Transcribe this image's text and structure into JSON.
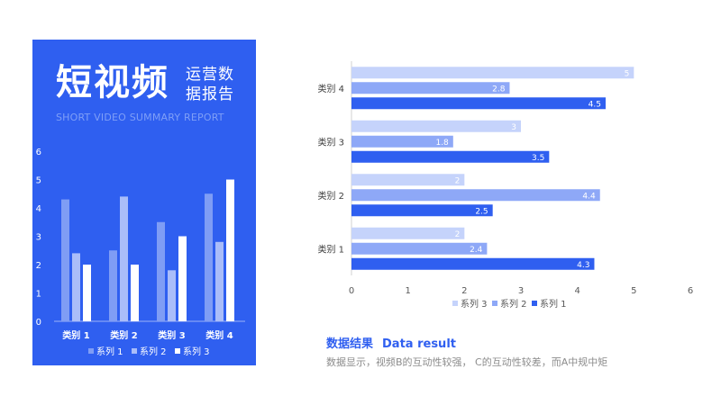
{
  "header": {
    "title_main": "短视频",
    "title_side": "运营数据报告",
    "title_en": "SHORT VIDEO SUMMARY REPORT"
  },
  "colors": {
    "panel_bg": "#2f5ff0",
    "series1": "#2f5ff0",
    "series2": "#8ea8f7",
    "series3": "#c5d3fb",
    "left_series1": "#7f9df5",
    "left_series2": "#aabdf9",
    "left_series3": "#ffffff"
  },
  "chart_data": [
    {
      "type": "bar",
      "orientation": "vertical",
      "categories": [
        "类别 1",
        "类别 2",
        "类别 3",
        "类别 4"
      ],
      "series": [
        {
          "name": "系列 1",
          "values": [
            4.3,
            2.5,
            3.5,
            4.5
          ]
        },
        {
          "name": "系列 2",
          "values": [
            2.4,
            4.4,
            1.8,
            2.8
          ]
        },
        {
          "name": "系列 3",
          "values": [
            2,
            2,
            3,
            5
          ]
        }
      ],
      "ylim": [
        0,
        6
      ],
      "yticks": [
        "0",
        "1",
        "2",
        "3",
        "4",
        "5",
        "6"
      ],
      "grid": false,
      "legend": "bottom",
      "data_labels": false
    },
    {
      "type": "bar",
      "orientation": "horizontal",
      "categories": [
        "类别 1",
        "类别 2",
        "类别 3",
        "类别 4"
      ],
      "series": [
        {
          "name": "系列 1",
          "values": [
            4.3,
            2.5,
            3.5,
            4.5
          ]
        },
        {
          "name": "系列 2",
          "values": [
            2.4,
            4.4,
            1.8,
            2.8
          ]
        },
        {
          "name": "系列 3",
          "values": [
            2,
            2,
            3,
            5
          ]
        }
      ],
      "xlim": [
        0,
        6
      ],
      "xticks": [
        "0",
        "1",
        "2",
        "3",
        "4",
        "5",
        "6"
      ],
      "grid": false,
      "legend": "bottom",
      "data_labels": true
    }
  ],
  "result": {
    "title_cn": "数据结果",
    "title_en": "Data result",
    "description": "数据显示，视频B的互动性较强， C的互动性较差，而A中规中矩"
  }
}
